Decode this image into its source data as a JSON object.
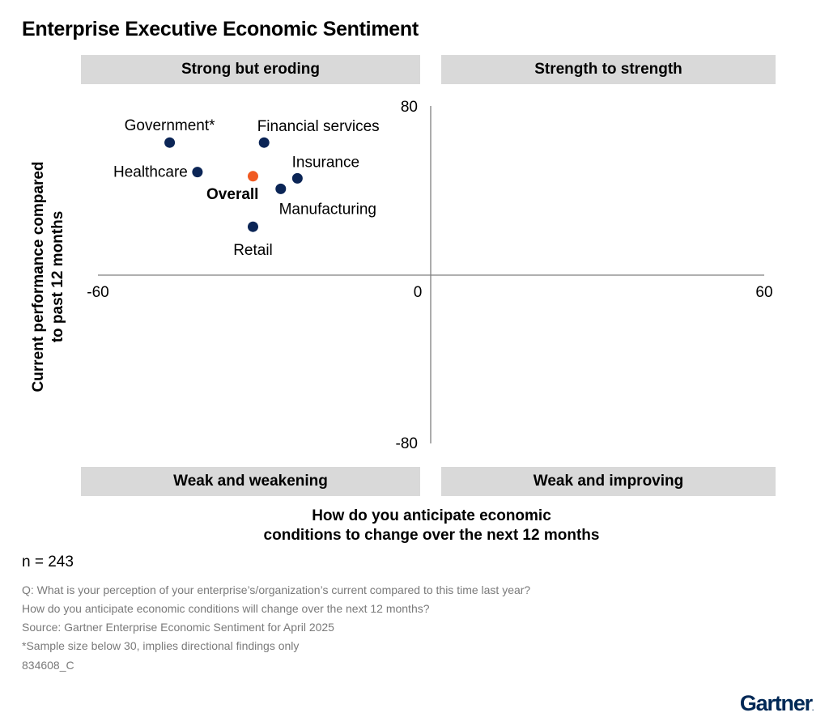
{
  "title": "Enterprise Executive Economic Sentiment",
  "quadrants": {
    "top_left": "Strong but eroding",
    "top_right": "Strength to strength",
    "bottom_left": "Weak and weakening",
    "bottom_right": "Weak and improving"
  },
  "chart_data": {
    "type": "scatter",
    "title": "Enterprise Executive Economic Sentiment",
    "xlabel": "How do you anticipate economic conditions to change over the next 12 months",
    "ylabel": "Current performance compared to past 12 months",
    "xlim": [
      -60,
      60
    ],
    "ylim": [
      -80,
      80
    ],
    "x_ticks": [
      "-60",
      "0",
      "60"
    ],
    "y_ticks": [
      "80",
      "-80"
    ],
    "grid": false,
    "colors": {
      "segment": "#0b2556",
      "overall": "#f05a22"
    },
    "points": [
      {
        "label": "Government*",
        "x": -47,
        "y": 63
      },
      {
        "label": "Financial services",
        "x": -30,
        "y": 63
      },
      {
        "label": "Healthcare",
        "x": -42,
        "y": 49
      },
      {
        "label": "Overall",
        "x": -32,
        "y": 47,
        "highlight": true
      },
      {
        "label": "Insurance",
        "x": -24,
        "y": 46
      },
      {
        "label": "Manufacturing",
        "x": -27,
        "y": 41
      },
      {
        "label": "Retail",
        "x": -32,
        "y": 23
      }
    ]
  },
  "axis_titles": {
    "y_line1": "Current performance compared",
    "y_line2": "to past 12 months",
    "x_line1": "How do you anticipate economic",
    "x_line2": "conditions to change over the next 12 months"
  },
  "sample_size": "n = 243",
  "notes": [
    "Q: What is your perception of your enterprise’s/organization’s current compared to this time last year?",
    "How do you anticipate economic conditions will change over the next 12 months?",
    "Source: Gartner Enterprise Economic Sentiment for April 2025",
    "*Sample size below 30, implies directional findings only",
    "834608_C"
  ],
  "logo": "Gartner"
}
